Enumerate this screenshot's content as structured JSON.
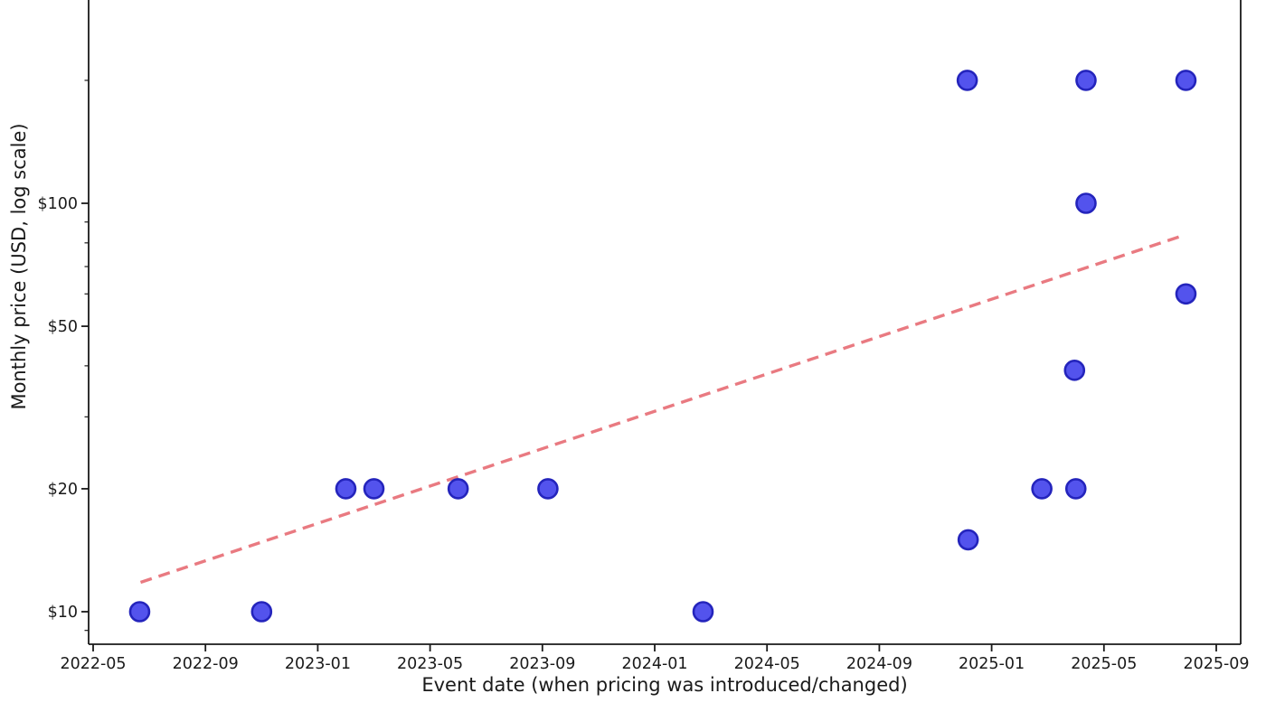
{
  "chart_data": {
    "type": "scatter",
    "title": "",
    "xlabel": "Event date (when pricing was introduced/changed)",
    "ylabel": "Monthly price (USD, log scale)",
    "x_scale": "time",
    "y_scale": "log",
    "x_tick_labels": [
      "2022-05",
      "2022-09",
      "2023-01",
      "2023-05",
      "2023-09",
      "2024-01",
      "2024-05",
      "2024-09",
      "2025-01",
      "2025-05",
      "2025-09"
    ],
    "y_ticks": [
      {
        "value": 10,
        "label": "$10"
      },
      {
        "value": 20,
        "label": "$20"
      },
      {
        "value": 50,
        "label": "$50"
      },
      {
        "value": 100,
        "label": "$100"
      }
    ],
    "y_minor_tick_values": [
      9,
      30,
      40,
      60,
      70,
      80,
      90,
      200
    ],
    "x_axis_range": [
      "2022-04-26",
      "2025-09-27"
    ],
    "y_axis_range": [
      8.3,
      315
    ],
    "grid": false,
    "legend": "none",
    "points": [
      {
        "date": "2022-06-21",
        "price": 10
      },
      {
        "date": "2022-11-01",
        "price": 10
      },
      {
        "date": "2023-02-01",
        "price": 20
      },
      {
        "date": "2023-03-01",
        "price": 20
      },
      {
        "date": "2023-06-01",
        "price": 20
      },
      {
        "date": "2023-09-07",
        "price": 20
      },
      {
        "date": "2024-02-23",
        "price": 10
      },
      {
        "date": "2024-12-05",
        "price": 200
      },
      {
        "date": "2024-12-06",
        "price": 15
      },
      {
        "date": "2025-02-25",
        "price": 20
      },
      {
        "date": "2025-03-30",
        "price": 39
      },
      {
        "date": "2025-04-01",
        "price": 20
      },
      {
        "date": "2025-04-12",
        "price": 100
      },
      {
        "date": "2025-04-12",
        "price": 200
      },
      {
        "date": "2025-07-29",
        "price": 200
      },
      {
        "date": "2025-07-29",
        "price": 60
      }
    ],
    "trendline": {
      "style": "dashed",
      "start_date": "2022-06-22",
      "start_price": 11.8,
      "end_date": "2025-07-28",
      "end_price": 83.7
    },
    "colors": {
      "marker_fill": "#4444ec",
      "marker_edge": "#2424bc",
      "trend": "#e8737b",
      "axis": "#1a1a1a",
      "text": "#1a1a1a",
      "background": "#ffffff"
    }
  }
}
